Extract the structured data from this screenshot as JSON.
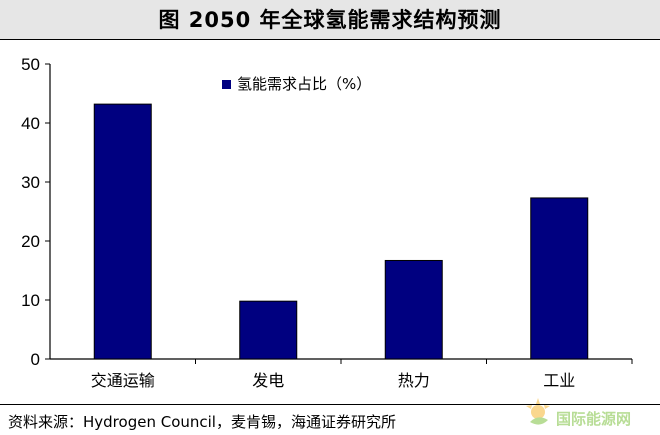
{
  "header": {
    "title": "图    2050 年全球氢能需求结构预测"
  },
  "footer": {
    "source": "资料来源：Hydrogen Council，麦肯锡，海通证券研究所"
  },
  "watermark": {
    "text": "国际能源网",
    "icon": "sun-leaf-logo-icon"
  },
  "chart_data": {
    "type": "bar",
    "title": "",
    "xlabel": "",
    "ylabel": "",
    "categories": [
      "交通运输",
      "发电",
      "热力",
      "工业"
    ],
    "series": [
      {
        "name": "氢能需求占比（%）",
        "values": [
          43.2,
          9.8,
          16.7,
          27.3
        ],
        "color": "#000080"
      }
    ],
    "ylim": [
      0,
      50
    ],
    "yticks": [
      0,
      10,
      20,
      30,
      40,
      50
    ],
    "grid": false,
    "legend": "top-left"
  }
}
